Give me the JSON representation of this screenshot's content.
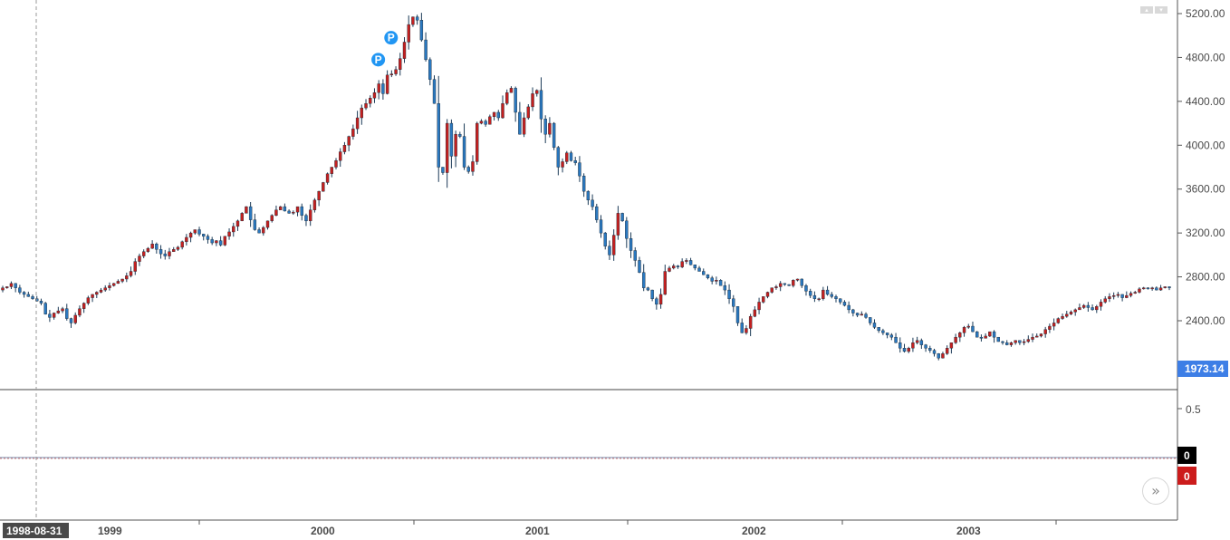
{
  "chart_data": {
    "type": "candlestick",
    "x_labels": [
      "1999",
      "2000",
      "2001",
      "2002",
      "2003"
    ],
    "y_ticks": [
      "5200.00",
      "4800.00",
      "4400.00",
      "4000.00",
      "3600.00",
      "3200.00",
      "2800.00",
      "2400.00"
    ],
    "ylim": [
      1973.14,
      5240
    ],
    "current_price_label": "1973.14",
    "crosshair_date": "1998-08-31",
    "markers": [
      {
        "label": "P",
        "date_index": 93,
        "price": 4980
      },
      {
        "label": "P",
        "date_index": 90,
        "price": 4780
      }
    ],
    "closes": [
      2700,
      2710,
      2740,
      2700,
      2660,
      2640,
      2620,
      2600,
      2580,
      2560,
      2460,
      2430,
      2470,
      2490,
      2510,
      2420,
      2380,
      2450,
      2510,
      2560,
      2610,
      2640,
      2660,
      2680,
      2700,
      2720,
      2740,
      2760,
      2780,
      2810,
      2850,
      2940,
      2990,
      3030,
      3060,
      3100,
      3050,
      3010,
      2990,
      3030,
      3050,
      3070,
      3120,
      3160,
      3200,
      3230,
      3190,
      3170,
      3140,
      3110,
      3130,
      3090,
      3170,
      3210,
      3260,
      3310,
      3380,
      3440,
      3320,
      3230,
      3200,
      3250,
      3310,
      3360,
      3410,
      3440,
      3400,
      3380,
      3390,
      3440,
      3360,
      3310,
      3410,
      3500,
      3580,
      3660,
      3740,
      3800,
      3860,
      3940,
      4000,
      4080,
      4150,
      4250,
      4340,
      4380,
      4430,
      4480,
      4560,
      4470,
      4640,
      4650,
      4690,
      4790,
      4940,
      5100,
      5170,
      5140,
      4960,
      4780,
      4600,
      4380,
      3800,
      3750,
      4200,
      3900,
      4100,
      4080,
      3800,
      3760,
      3850,
      4200,
      4220,
      4190,
      4260,
      4300,
      4250,
      4380,
      4480,
      4520,
      4300,
      4100,
      4250,
      4350,
      4470,
      4500,
      4240,
      4100,
      4200,
      3980,
      3800,
      3850,
      3930,
      3860,
      3840,
      3720,
      3580,
      3500,
      3440,
      3320,
      3200,
      3080,
      3000,
      3180,
      3380,
      3310,
      3150,
      3040,
      2950,
      2840,
      2700,
      2680,
      2600,
      2550,
      2640,
      2850,
      2880,
      2900,
      2890,
      2940,
      2950,
      2910,
      2880,
      2850,
      2820,
      2790,
      2760,
      2770,
      2720,
      2680,
      2600,
      2530,
      2380,
      2290,
      2330,
      2440,
      2500,
      2570,
      2620,
      2660,
      2700,
      2710,
      2740,
      2730,
      2720,
      2770,
      2780,
      2720,
      2670,
      2630,
      2600,
      2600,
      2680,
      2640,
      2620,
      2600,
      2570,
      2540,
      2500,
      2470,
      2450,
      2460,
      2430,
      2380,
      2340,
      2310,
      2290,
      2270,
      2250,
      2200,
      2150,
      2120,
      2150,
      2200,
      2220,
      2180,
      2150,
      2130,
      2100,
      2060,
      2100,
      2150,
      2200,
      2250,
      2290,
      2340,
      2350,
      2300,
      2250,
      2240,
      2260,
      2300,
      2250,
      2210,
      2200,
      2180,
      2200,
      2220,
      2200,
      2210,
      2230,
      2250,
      2260,
      2280,
      2320,
      2350,
      2380,
      2420,
      2440,
      2460,
      2480,
      2500,
      2520,
      2540,
      2520,
      2500,
      2530,
      2570,
      2600,
      2620,
      2630,
      2640,
      2610,
      2630,
      2650,
      2660,
      2690,
      2700,
      2690,
      2700,
      2680,
      2700,
      2710,
      2700
    ]
  },
  "indicator_pane": {
    "tick_label": "0.5",
    "value_label_1": "0",
    "value_label_2": "0",
    "value_color_1": "#000000",
    "value_color_2": "#cc1c1c"
  },
  "colors": {
    "up": "#c42020",
    "down": "#2a78bf",
    "price_tag": "#3d7ee6",
    "marker": "#2196f3"
  },
  "scroll_button_glyph": "»",
  "corner_icons": [
    "▴",
    "▾"
  ]
}
